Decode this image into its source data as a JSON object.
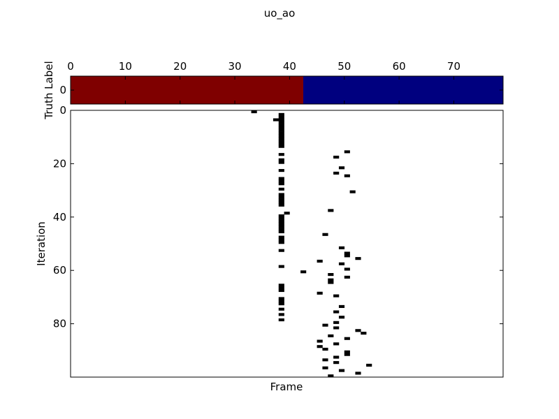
{
  "chart_data": {
    "title": "uo_ao",
    "truth_label": {
      "type": "heatmap",
      "ylabel": "Truth Label",
      "y_ticks": [
        0
      ],
      "x_ticks": [
        0,
        10,
        20,
        30,
        40,
        50,
        60,
        70
      ],
      "x_range": [
        0,
        79
      ],
      "segments": [
        {
          "start": 0,
          "end": 42.5,
          "value": 1,
          "color": "#7f0000"
        },
        {
          "start": 42.5,
          "end": 79,
          "value": 0,
          "color": "#00007f"
        }
      ]
    },
    "main": {
      "type": "heatmap",
      "xlabel": "Frame",
      "ylabel": "Iteration",
      "y_ticks": [
        0,
        20,
        40,
        60,
        80
      ],
      "x_range": [
        0,
        79
      ],
      "y_range": [
        0,
        100
      ],
      "grid": false,
      "marked_cells": [
        [
          33,
          0
        ],
        [
          37,
          3
        ],
        [
          38,
          1
        ],
        [
          38,
          2
        ],
        [
          38,
          3
        ],
        [
          38,
          4
        ],
        [
          38,
          5
        ],
        [
          38,
          6
        ],
        [
          38,
          7
        ],
        [
          38,
          8
        ],
        [
          38,
          9
        ],
        [
          38,
          10
        ],
        [
          38,
          11
        ],
        [
          38,
          12
        ],
        [
          38,
          13
        ],
        [
          38,
          16
        ],
        [
          38,
          18
        ],
        [
          38,
          19
        ],
        [
          38,
          22
        ],
        [
          38,
          25
        ],
        [
          38,
          26
        ],
        [
          38,
          27
        ],
        [
          38,
          29
        ],
        [
          38,
          31
        ],
        [
          38,
          32
        ],
        [
          38,
          33
        ],
        [
          38,
          34
        ],
        [
          38,
          35
        ],
        [
          38,
          39
        ],
        [
          38,
          40
        ],
        [
          38,
          41
        ],
        [
          38,
          42
        ],
        [
          38,
          43
        ],
        [
          38,
          44
        ],
        [
          38,
          45
        ],
        [
          38,
          47
        ],
        [
          38,
          48
        ],
        [
          38,
          49
        ],
        [
          38,
          52
        ],
        [
          38,
          58
        ],
        [
          38,
          65
        ],
        [
          38,
          66
        ],
        [
          38,
          67
        ],
        [
          38,
          70
        ],
        [
          38,
          71
        ],
        [
          38,
          72
        ],
        [
          38,
          74
        ],
        [
          38,
          76
        ],
        [
          38,
          78
        ],
        [
          39,
          38
        ],
        [
          50,
          15
        ],
        [
          48,
          17
        ],
        [
          49,
          21
        ],
        [
          48,
          23
        ],
        [
          50,
          24
        ],
        [
          51,
          30
        ],
        [
          47,
          37
        ],
        [
          46,
          46
        ],
        [
          49,
          51
        ],
        [
          50,
          53
        ],
        [
          50,
          54
        ],
        [
          52,
          55
        ],
        [
          45,
          56
        ],
        [
          49,
          57
        ],
        [
          50,
          59
        ],
        [
          42,
          60
        ],
        [
          47,
          61
        ],
        [
          50,
          62
        ],
        [
          47,
          63
        ],
        [
          47,
          64
        ],
        [
          45,
          68
        ],
        [
          48,
          69
        ],
        [
          49,
          73
        ],
        [
          48,
          75
        ],
        [
          49,
          77
        ],
        [
          48,
          79
        ],
        [
          46,
          80
        ],
        [
          48,
          81
        ],
        [
          52,
          82
        ],
        [
          53,
          83
        ],
        [
          47,
          84
        ],
        [
          50,
          85
        ],
        [
          45,
          86
        ],
        [
          48,
          87
        ],
        [
          45,
          88
        ],
        [
          46,
          89
        ],
        [
          50,
          90
        ],
        [
          50,
          91
        ],
        [
          48,
          92
        ],
        [
          46,
          93
        ],
        [
          48,
          94
        ],
        [
          54,
          95
        ],
        [
          46,
          96
        ],
        [
          49,
          97
        ],
        [
          52,
          98
        ],
        [
          47,
          99
        ]
      ]
    }
  }
}
